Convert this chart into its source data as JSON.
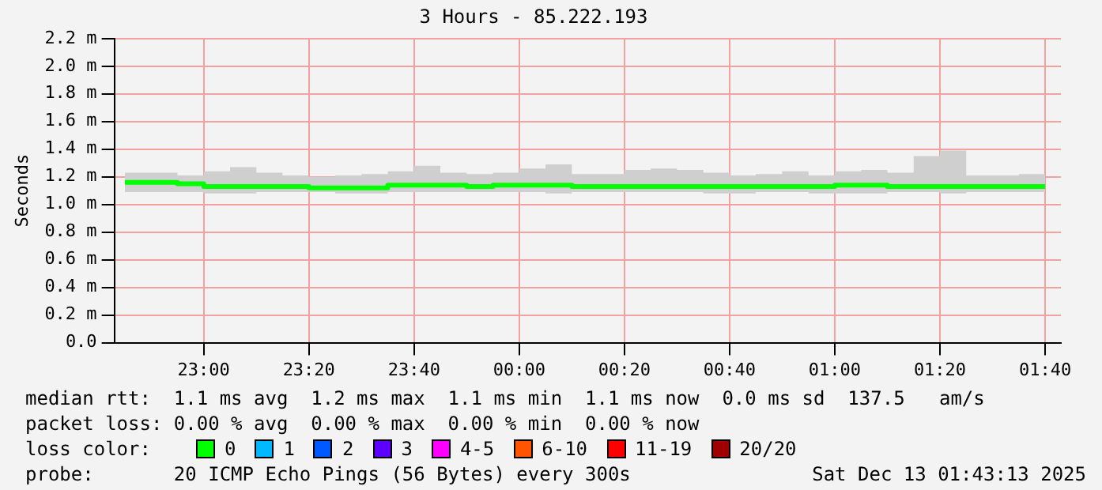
{
  "chart_data": {
    "type": "step",
    "title": "3 Hours - 85.222.193",
    "ylabel": "Seconds",
    "x": [
      "2025-12-12T22:45",
      "2025-12-12T22:50",
      "2025-12-12T22:55",
      "2025-12-12T23:00",
      "2025-12-12T23:05",
      "2025-12-12T23:10",
      "2025-12-12T23:15",
      "2025-12-12T23:20",
      "2025-12-12T23:25",
      "2025-12-12T23:30",
      "2025-12-12T23:35",
      "2025-12-12T23:40",
      "2025-12-12T23:45",
      "2025-12-12T23:50",
      "2025-12-12T23:55",
      "2025-12-13T00:00",
      "2025-12-13T00:05",
      "2025-12-13T00:10",
      "2025-12-13T00:15",
      "2025-12-13T00:20",
      "2025-12-13T00:25",
      "2025-12-13T00:30",
      "2025-12-13T00:35",
      "2025-12-13T00:40",
      "2025-12-13T00:45",
      "2025-12-13T00:50",
      "2025-12-13T00:55",
      "2025-12-13T01:00",
      "2025-12-13T01:05",
      "2025-12-13T01:10",
      "2025-12-13T01:15",
      "2025-12-13T01:20",
      "2025-12-13T01:25",
      "2025-12-13T01:30",
      "2025-12-13T01:35",
      "2025-12-13T01:40"
    ],
    "series": [
      {
        "color": "#00ff00",
        "values": [
          1.16,
          1.16,
          1.15,
          1.13,
          1.13,
          1.13,
          1.13,
          1.12,
          1.12,
          1.12,
          1.14,
          1.14,
          1.14,
          1.13,
          1.14,
          1.14,
          1.14,
          1.13,
          1.13,
          1.13,
          1.13,
          1.13,
          1.13,
          1.13,
          1.13,
          1.13,
          1.13,
          1.14,
          1.14,
          1.13,
          1.13,
          1.13,
          1.13,
          1.13,
          1.13,
          1.13
        ],
        "lower": [
          1.09,
          1.09,
          1.09,
          1.08,
          1.08,
          1.09,
          1.09,
          1.09,
          1.08,
          1.08,
          1.09,
          1.09,
          1.09,
          1.09,
          1.09,
          1.09,
          1.08,
          1.09,
          1.09,
          1.09,
          1.09,
          1.09,
          1.08,
          1.08,
          1.09,
          1.09,
          1.08,
          1.08,
          1.08,
          1.09,
          1.09,
          1.08,
          1.09,
          1.09,
          1.09,
          1.09
        ],
        "upper": [
          1.23,
          1.23,
          1.21,
          1.24,
          1.27,
          1.23,
          1.21,
          1.2,
          1.21,
          1.22,
          1.24,
          1.28,
          1.23,
          1.22,
          1.23,
          1.26,
          1.29,
          1.22,
          1.22,
          1.25,
          1.26,
          1.25,
          1.23,
          1.21,
          1.22,
          1.24,
          1.21,
          1.24,
          1.25,
          1.23,
          1.35,
          1.39,
          1.21,
          1.21,
          1.22,
          1.23
        ]
      }
    ],
    "xlim": [
      "2025-12-12T22:43",
      "2025-12-13T01:43"
    ],
    "xticks": [
      {
        "value": "2025-12-12T23:00",
        "label": "23:00"
      },
      {
        "value": "2025-12-12T23:20",
        "label": "23:20"
      },
      {
        "value": "2025-12-12T23:40",
        "label": "23:40"
      },
      {
        "value": "2025-12-13T00:00",
        "label": "00:00"
      },
      {
        "value": "2025-12-13T00:20",
        "label": "00:20"
      },
      {
        "value": "2025-12-13T00:40",
        "label": "00:40"
      },
      {
        "value": "2025-12-13T01:00",
        "label": "01:00"
      },
      {
        "value": "2025-12-13T01:20",
        "label": "01:20"
      },
      {
        "value": "2025-12-13T01:40",
        "label": "01:40"
      }
    ],
    "ylim": [
      0,
      2.2
    ],
    "yticks": [
      {
        "value": 0,
        "label": "0.0"
      },
      {
        "value": 0.2,
        "label": "0.2 m"
      },
      {
        "value": 0.4,
        "label": "0.4 m"
      },
      {
        "value": 0.6,
        "label": "0.6 m"
      },
      {
        "value": 0.8,
        "label": "0.8 m"
      },
      {
        "value": 1.0,
        "label": "1.0 m"
      },
      {
        "value": 1.2,
        "label": "1.2 m"
      },
      {
        "value": 1.4,
        "label": "1.4 m"
      },
      {
        "value": 1.6,
        "label": "1.6 m"
      },
      {
        "value": 1.8,
        "label": "1.8 m"
      },
      {
        "value": 2.0,
        "label": "2.0 m"
      },
      {
        "value": 2.2,
        "label": "2.2 m"
      }
    ],
    "grid": true,
    "annotations": [
      "median rtt:  1.1 ms avg  1.2 ms max  1.1 ms min  1.1 ms now  0.0 ms sd  137.5   am/s",
      "packet loss: 0.00 % avg  0.00 % max  0.00 % min  0.00 % now",
      "loss color:",
      "0",
      "1",
      "2",
      "3",
      "4-5",
      "6-10",
      "11-19",
      "20/20",
      "probe:       20 ICMP Echo Pings (56 Bytes) every 300s",
      "Sat Dec 13 01:43:13 2025"
    ]
  }
}
